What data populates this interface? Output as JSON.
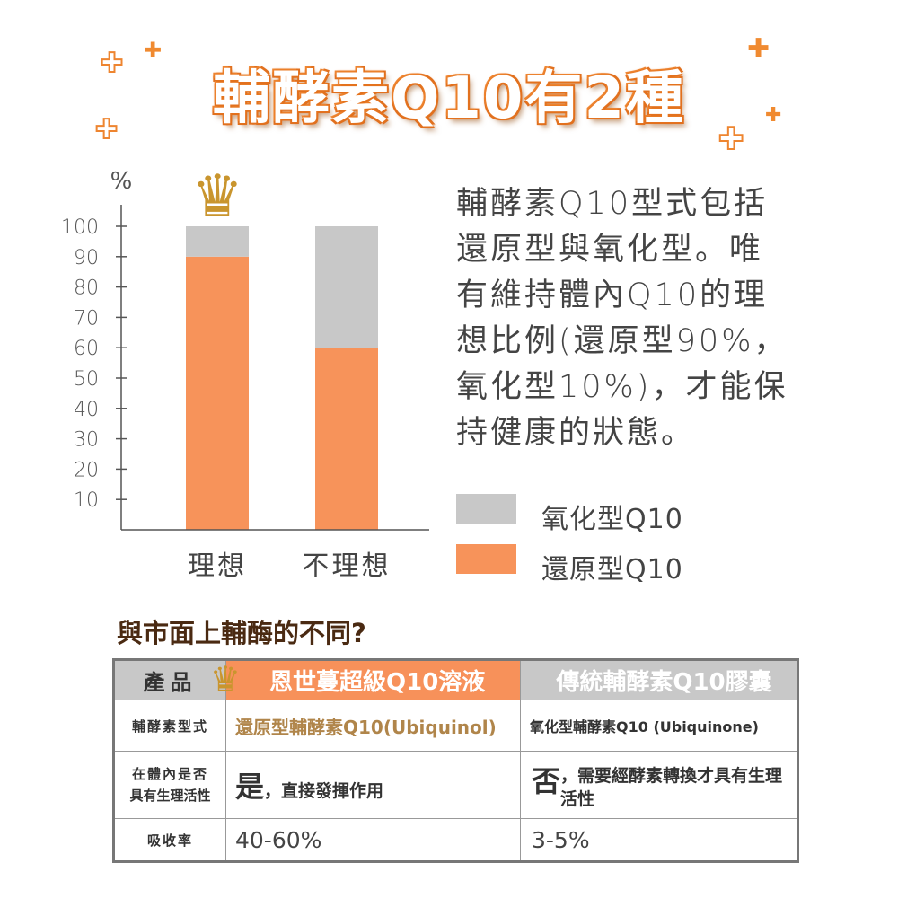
{
  "title": "輔酵素Q10有2種",
  "description_lines": [
    "輔酵素Q10型式包括",
    "還原型與氧化型。唯",
    "有維持體內Q10的理",
    "想比例(還原型90%，",
    "氧化型10%)，才能保",
    "持健康的狀態。"
  ],
  "colors": {
    "reduced": "#f7935a",
    "oxidized": "#c8c8c8",
    "title_orange": "#e5741e",
    "header_orange": "#f7915a",
    "header_gray": "#c8c8c8",
    "gold_text": "#b0854a"
  },
  "chart_data": {
    "type": "bar",
    "stacked": true,
    "ylabel": "%",
    "ylim": [
      0,
      100
    ],
    "yticks": [
      10,
      20,
      30,
      40,
      50,
      60,
      70,
      80,
      90,
      100
    ],
    "categories": [
      "理想",
      "不理想"
    ],
    "series": [
      {
        "name": "還原型Q10",
        "values": [
          90,
          60
        ],
        "color": "#f7935a"
      },
      {
        "name": "氧化型Q10",
        "values": [
          10,
          40
        ],
        "color": "#c8c8c8"
      }
    ],
    "legend": [
      "氧化型Q10",
      "還原型Q10"
    ],
    "legend_position": "right",
    "annotation": "crown-icon above 理想"
  },
  "subtitle": "與市面上輔酶的不同?",
  "table": {
    "headers": [
      "產品",
      "恩世蔓超級Q10溶液",
      "傳統輔酵素Q10膠囊"
    ],
    "rows": [
      {
        "label": "輔酵素型式",
        "a": "還原型輔酵素Q10(Ubiquinol)",
        "b": "氧化型輔酵素Q10 (Ubiquinone)"
      },
      {
        "label_lines": [
          "在體內是否",
          "具有生理活性"
        ],
        "a_big": "是",
        "a": "，直接發揮作用",
        "b_big": "否",
        "b": "，需要經酵素轉換才具有生理活性"
      },
      {
        "label": "吸收率",
        "a": "40-60%",
        "b": "3-5%"
      }
    ]
  }
}
